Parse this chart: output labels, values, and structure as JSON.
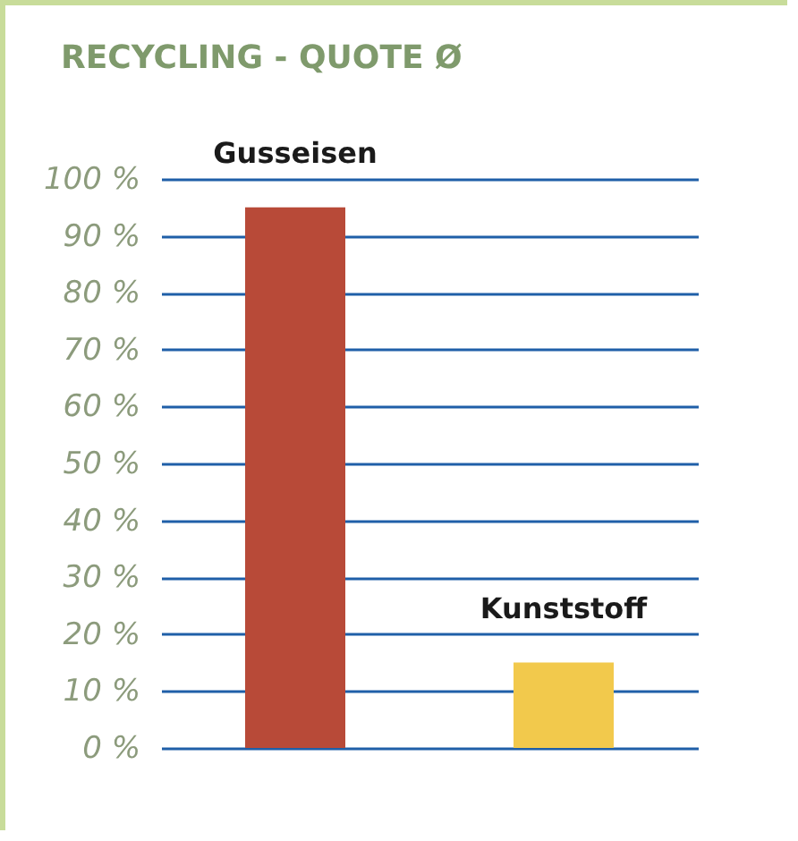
{
  "chart_data": {
    "type": "bar",
    "title": "RECYCLING - QUOTE Ø",
    "categories": [
      "Gusseisen",
      "Kunststoff"
    ],
    "values": [
      95,
      15
    ],
    "colors": [
      "#b84a38",
      "#f2c94c"
    ],
    "ylim": [
      0,
      100
    ],
    "yticks": [
      {
        "value": 0,
        "label": "0 %"
      },
      {
        "value": 10,
        "label": "10 %"
      },
      {
        "value": 20,
        "label": "20 %"
      },
      {
        "value": 30,
        "label": "30 %"
      },
      {
        "value": 40,
        "label": "40 %"
      },
      {
        "value": 50,
        "label": "50 %"
      },
      {
        "value": 60,
        "label": "60 %"
      },
      {
        "value": 70,
        "label": "70 %"
      },
      {
        "value": 80,
        "label": "80 %"
      },
      {
        "value": 90,
        "label": "90 %"
      },
      {
        "value": 100,
        "label": "100 %"
      }
    ],
    "grid": "y",
    "tick_labels": "y"
  }
}
